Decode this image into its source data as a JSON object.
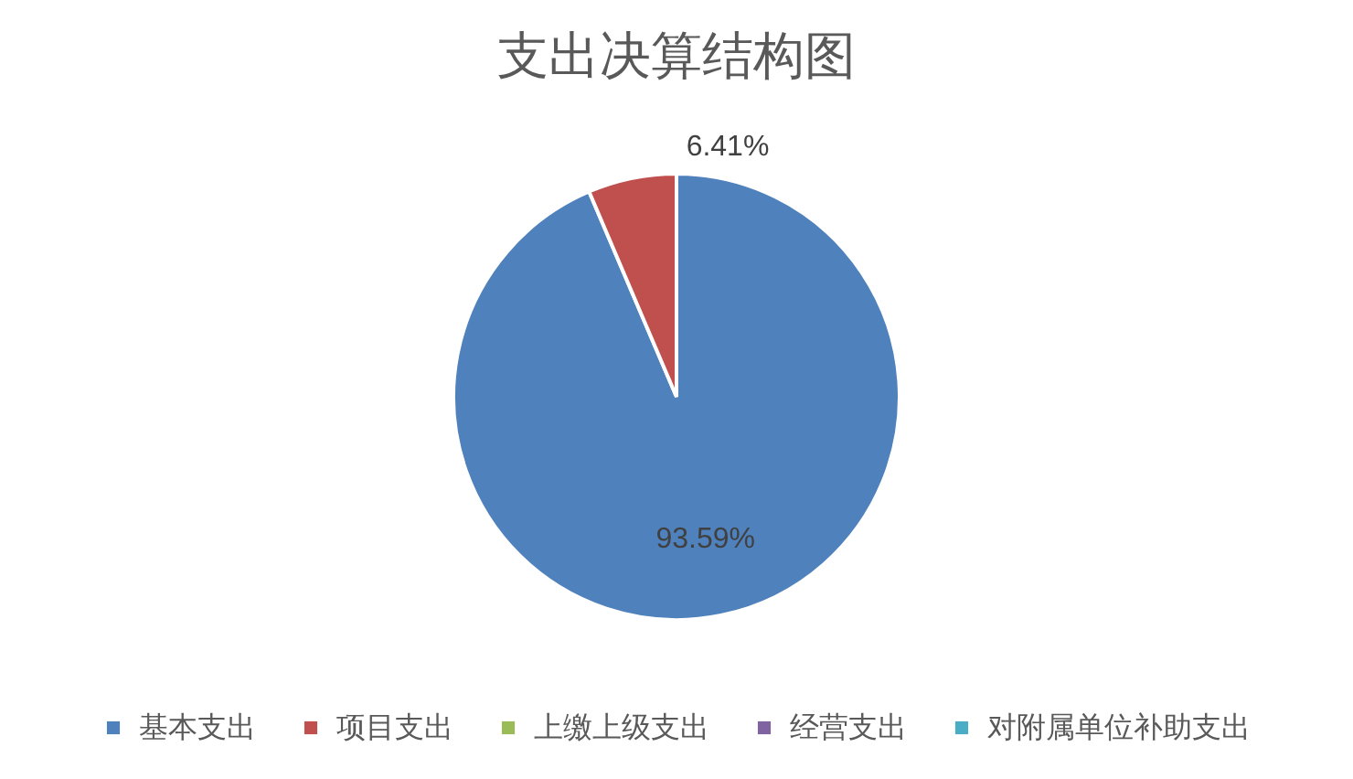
{
  "chart_data": {
    "type": "pie",
    "title": "支出决算结构图",
    "categories": [
      "基本支出",
      "项目支出",
      "上缴上级支出",
      "经营支出",
      "对附属单位补助支出"
    ],
    "values": [
      93.59,
      6.41,
      0,
      0,
      0
    ],
    "colors": [
      "#4f81bd",
      "#c0504d",
      "#9bbb59",
      "#8064a2",
      "#4bacc6"
    ],
    "value_labels": [
      "93.59%",
      "6.41%",
      null,
      null,
      null
    ],
    "legend": "bottom"
  }
}
